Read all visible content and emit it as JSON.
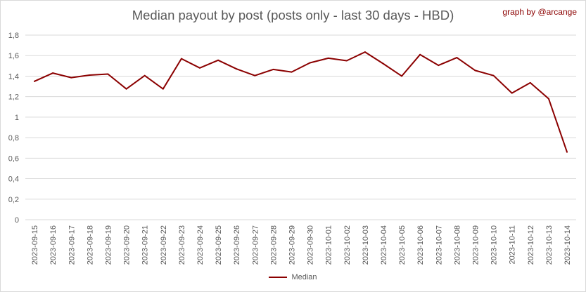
{
  "chart_data": {
    "type": "line",
    "title": "Median payout by post (posts only - last 30 days - HBD)",
    "credit": "graph by @arcange",
    "xlabel": "",
    "ylabel": "",
    "ylim": [
      0,
      1.8
    ],
    "y_ticks": [
      "0",
      "0,2",
      "0,4",
      "0,6",
      "0,8",
      "1",
      "1,2",
      "1,4",
      "1,6",
      "1,8"
    ],
    "y_tick_values": [
      0,
      0.2,
      0.4,
      0.6,
      0.8,
      1.0,
      1.2,
      1.4,
      1.6,
      1.8
    ],
    "grid": true,
    "legend_position": "bottom",
    "line_color": "#8b0000",
    "categories": [
      "2023-09-15",
      "2023-09-16",
      "2023-09-17",
      "2023-09-18",
      "2023-09-19",
      "2023-09-20",
      "2023-09-21",
      "2023-09-22",
      "2023-09-23",
      "2023-09-24",
      "2023-09-25",
      "2023-09-26",
      "2023-09-27",
      "2023-09-28",
      "2023-09-29",
      "2023-09-30",
      "2023-10-01",
      "2023-10-02",
      "2023-10-03",
      "2023-10-04",
      "2023-10-05",
      "2023-10-06",
      "2023-10-07",
      "2023-10-08",
      "2023-10-09",
      "2023-10-10",
      "2023-10-11",
      "2023-10-12",
      "2023-10-13",
      "2023-10-14"
    ],
    "series": [
      {
        "name": "Median",
        "values": [
          1.35,
          1.43,
          1.385,
          1.41,
          1.42,
          1.275,
          1.405,
          1.275,
          1.57,
          1.48,
          1.555,
          1.47,
          1.405,
          1.465,
          1.44,
          1.53,
          1.575,
          1.55,
          1.635,
          1.52,
          1.4,
          1.61,
          1.505,
          1.58,
          1.455,
          1.405,
          1.235,
          1.335,
          1.18,
          0.66
        ]
      }
    ]
  }
}
